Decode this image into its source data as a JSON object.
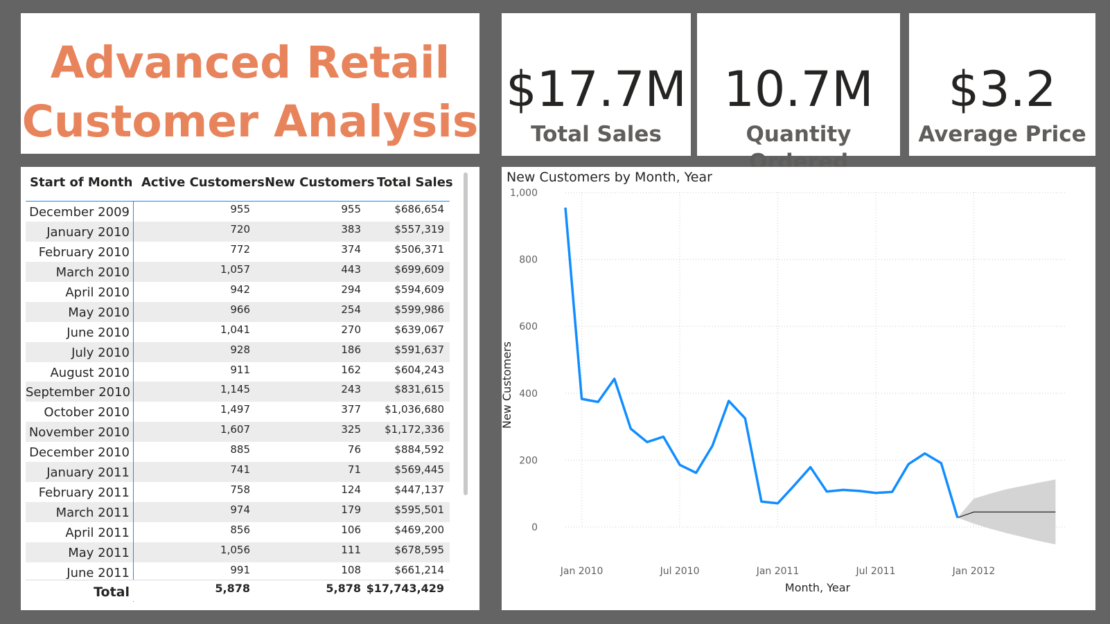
{
  "title": {
    "line1": "Advanced Retail",
    "line2": "Customer Analysis"
  },
  "kpis": [
    {
      "value": "$17.7M",
      "label": "Total Sales"
    },
    {
      "value": "10.7M",
      "label": "Quantity Ordered"
    },
    {
      "value": "$3.2",
      "label": "Average Price"
    }
  ],
  "table": {
    "headers": [
      "Start of Month",
      "Active Customers",
      "New Customers",
      "Total Sales"
    ],
    "rows": [
      [
        "December 2009",
        "955",
        "955",
        "$686,654"
      ],
      [
        "January 2010",
        "720",
        "383",
        "$557,319"
      ],
      [
        "February 2010",
        "772",
        "374",
        "$506,371"
      ],
      [
        "March 2010",
        "1,057",
        "443",
        "$699,609"
      ],
      [
        "April 2010",
        "942",
        "294",
        "$594,609"
      ],
      [
        "May 2010",
        "966",
        "254",
        "$599,986"
      ],
      [
        "June 2010",
        "1,041",
        "270",
        "$639,067"
      ],
      [
        "July 2010",
        "928",
        "186",
        "$591,637"
      ],
      [
        "August 2010",
        "911",
        "162",
        "$604,243"
      ],
      [
        "September 2010",
        "1,145",
        "243",
        "$831,615"
      ],
      [
        "October 2010",
        "1,497",
        "377",
        "$1,036,680"
      ],
      [
        "November 2010",
        "1,607",
        "325",
        "$1,172,336"
      ],
      [
        "December 2010",
        "885",
        "76",
        "$884,592"
      ],
      [
        "January 2011",
        "741",
        "71",
        "$569,445"
      ],
      [
        "February 2011",
        "758",
        "124",
        "$447,137"
      ],
      [
        "March 2011",
        "974",
        "179",
        "$595,501"
      ],
      [
        "April 2011",
        "856",
        "106",
        "$469,200"
      ],
      [
        "May 2011",
        "1,056",
        "111",
        "$678,595"
      ],
      [
        "June 2011",
        "991",
        "108",
        "$661,214"
      ]
    ],
    "total": {
      "label": "Total",
      "active": "5,878",
      "new": "5,878",
      "sales": "$17,743,429"
    }
  },
  "chart_data": {
    "type": "line",
    "title": "New Customers by Month, Year",
    "xlabel": "Month, Year",
    "ylabel": "New Customers",
    "ylim": [
      0,
      1000
    ],
    "yticks": [
      "0",
      "200",
      "400",
      "600",
      "800",
      "1,000"
    ],
    "xtick_labels": [
      "Jan 2010",
      "Jul 2010",
      "Jan 2011",
      "Jul 2011",
      "Jan 2012"
    ],
    "grid": true,
    "x": [
      "2009-12",
      "2010-01",
      "2010-02",
      "2010-03",
      "2010-04",
      "2010-05",
      "2010-06",
      "2010-07",
      "2010-08",
      "2010-09",
      "2010-10",
      "2010-11",
      "2010-12",
      "2011-01",
      "2011-02",
      "2011-03",
      "2011-04",
      "2011-05",
      "2011-06",
      "2011-07",
      "2011-08",
      "2011-09",
      "2011-10",
      "2011-11",
      "2011-12"
    ],
    "series": [
      {
        "values": [
          955,
          383,
          374,
          443,
          294,
          254,
          270,
          186,
          162,
          243,
          377,
          325,
          76,
          71,
          124,
          179,
          106,
          111,
          108,
          102,
          105,
          188,
          220,
          191,
          28
        ],
        "color": "#118dff"
      }
    ],
    "forecast": {
      "x": [
        "2011-12",
        "2012-01",
        "2012-02",
        "2012-03",
        "2012-04",
        "2012-05",
        "2012-06"
      ],
      "values": [
        28,
        45,
        45,
        45,
        45,
        45,
        45
      ],
      "upper": [
        28,
        85,
        100,
        113,
        123,
        133,
        142
      ],
      "lower": [
        28,
        10,
        -5,
        -18,
        -30,
        -42,
        -52
      ],
      "line_color": "#252423",
      "band_color": "#d4d4d4"
    }
  },
  "colors": {
    "title": "#e8845c",
    "accent": "#118dff",
    "background": "#646464"
  }
}
